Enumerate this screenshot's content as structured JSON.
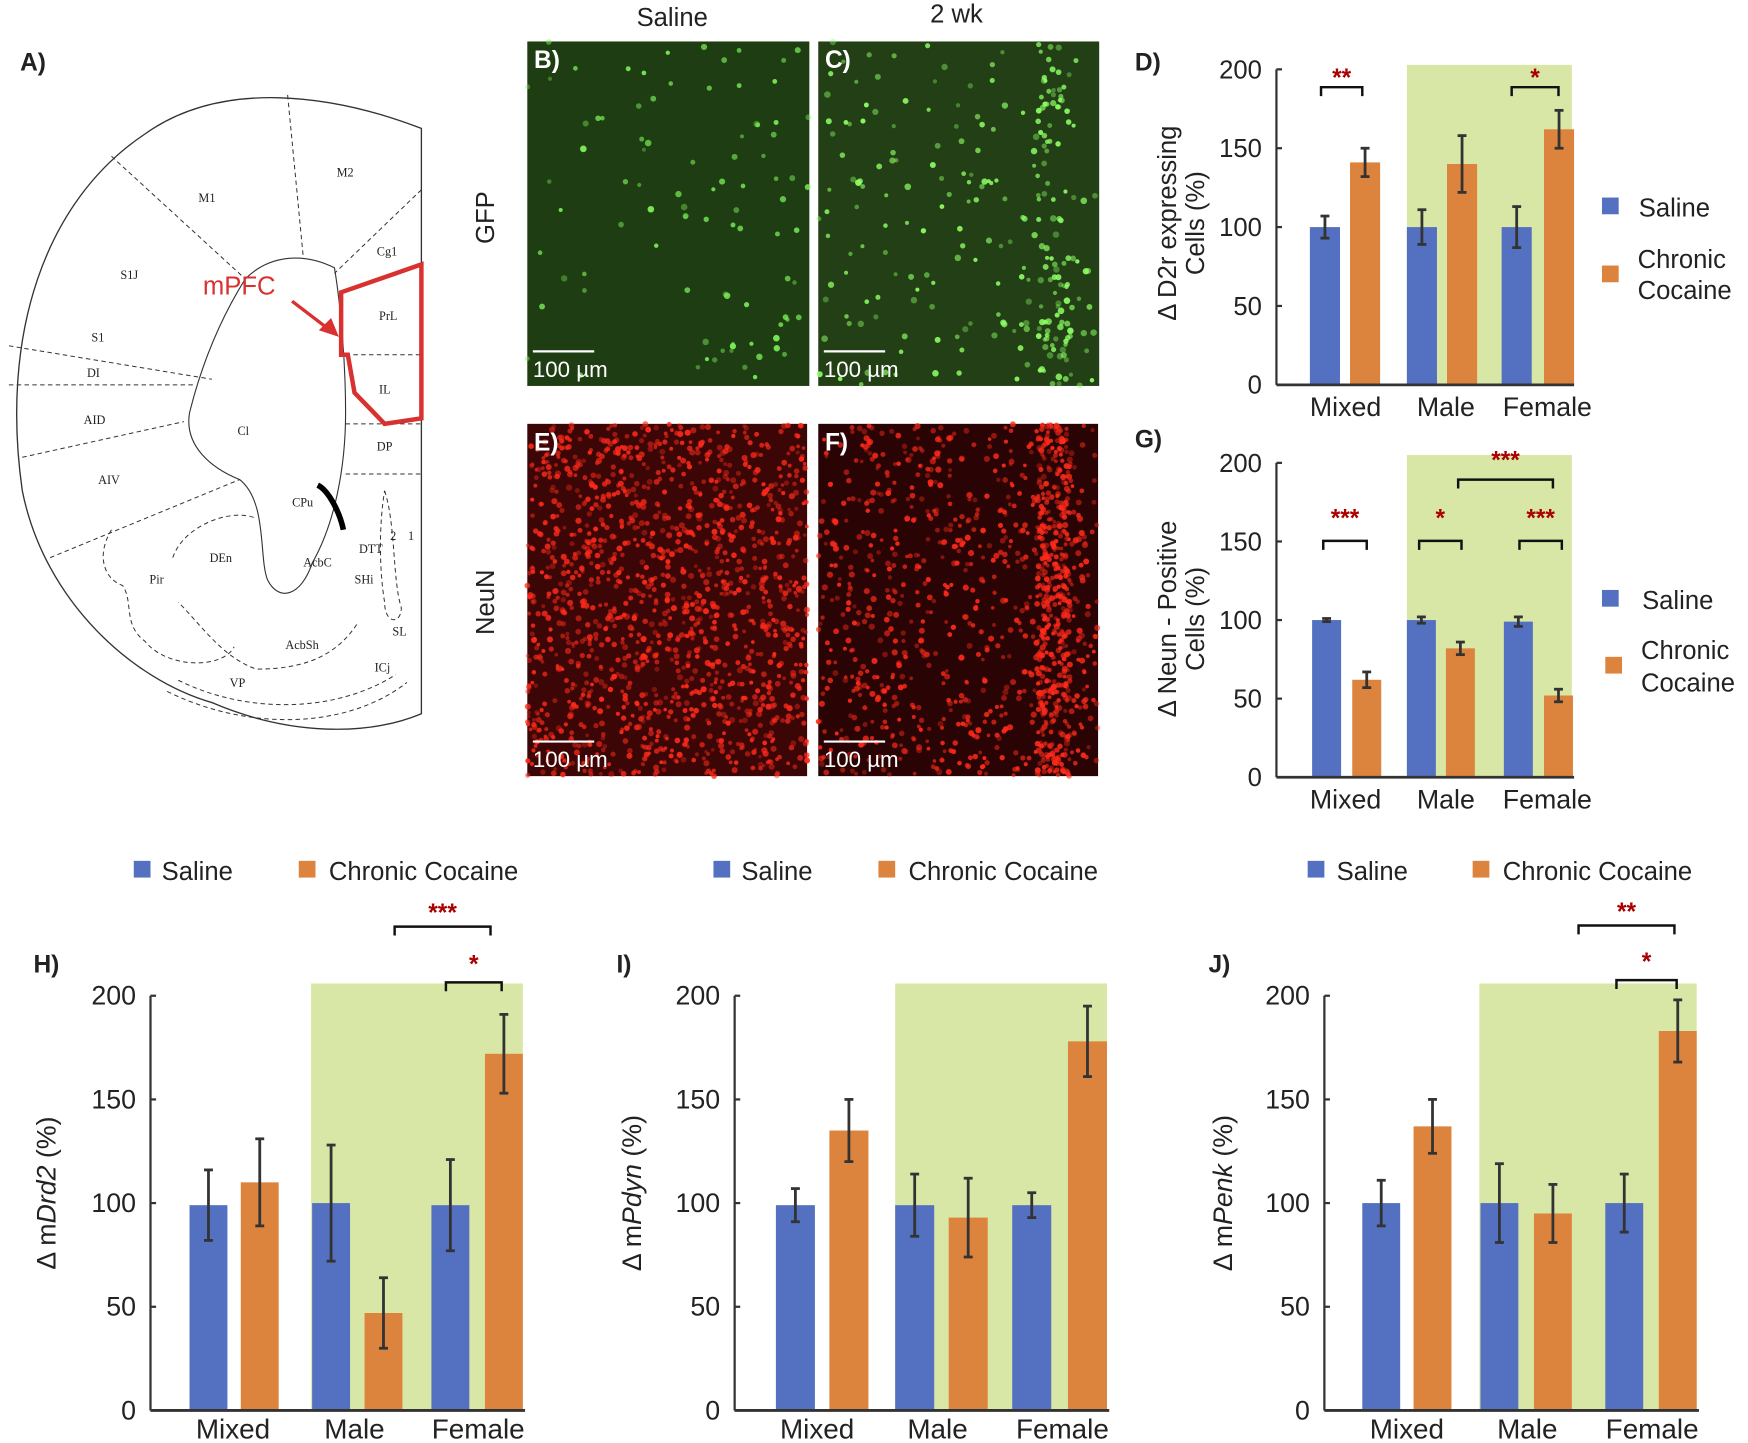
{
  "panel_labels": {
    "A": "A)",
    "B": "B)",
    "C": "C)",
    "D": "D)",
    "E": "E)",
    "F": "F)",
    "G": "G)",
    "H": "H)",
    "I": "I)",
    "J": "J)"
  },
  "column_headers": {
    "saline": "Saline",
    "two_week": "2 wk"
  },
  "row_labels": {
    "gfp": "GFP",
    "neun": "NeuN"
  },
  "scale_bar": "100 µm",
  "atlas": {
    "highlight": "mPFC",
    "regions": [
      "M1",
      "M2",
      "S1J",
      "S1",
      "DI",
      "AID",
      "AIV",
      "Cl",
      "Cg1",
      "PrL",
      "IL",
      "DP",
      "CPu",
      "DEn",
      "Pir",
      "AcbC",
      "AcbSh",
      "VP",
      "DTT",
      "SHi",
      "SL",
      "ICj",
      "1",
      "2"
    ]
  },
  "colors": {
    "saline": "#5470c0",
    "cocaine": "#dc843d",
    "shade": "#d9e7a6",
    "sig": "#aa0000",
    "green_img": "#1c3a12",
    "red_img": "#3a0606",
    "atlas_red": "#d93030"
  },
  "legend": {
    "saline": "Saline",
    "cocaine": "Chronic Cocaine",
    "cocaine_l1": "Chronic",
    "cocaine_l2": "Cocaine"
  },
  "chart_data": [
    {
      "id": "D",
      "type": "bar",
      "ylabel_l1": "Δ D2r expressing",
      "ylabel_l2": "Cells (%)",
      "ylim": [
        0,
        200
      ],
      "ticks": [
        "0",
        "50",
        "100",
        "150",
        "200"
      ],
      "categories": [
        "Mixed",
        "Male",
        "Female"
      ],
      "series": [
        {
          "name": "Saline",
          "values": [
            100,
            100,
            100
          ],
          "errors": [
            7,
            11,
            13
          ]
        },
        {
          "name": "Chronic Cocaine",
          "values": [
            141,
            140,
            162
          ],
          "errors": [
            9,
            18,
            12
          ]
        }
      ],
      "significance": [
        "**",
        "*"
      ]
    },
    {
      "id": "G",
      "type": "bar",
      "ylabel_l1": "Δ Neun - Positive",
      "ylabel_l2": "Cells (%)",
      "ylim": [
        0,
        200
      ],
      "ticks": [
        "0",
        "50",
        "100",
        "150",
        "200"
      ],
      "categories": [
        "Mixed",
        "Male",
        "Female"
      ],
      "series": [
        {
          "name": "Saline",
          "values": [
            100,
            100,
            99
          ],
          "errors": [
            1,
            2,
            3
          ]
        },
        {
          "name": "Chronic Cocaine",
          "values": [
            62,
            82,
            52
          ],
          "errors": [
            5,
            4,
            4
          ]
        }
      ],
      "significance": [
        "***",
        "*",
        "***",
        "***"
      ]
    },
    {
      "id": "H",
      "type": "bar",
      "ylabel_prefix": "Δ m",
      "ylabel_gene": "Drd2",
      "ylabel_suffix": " (%)",
      "ylim": [
        0,
        200
      ],
      "ticks": [
        "0",
        "50",
        "100",
        "150",
        "200"
      ],
      "categories": [
        "Mixed",
        "Male",
        "Female"
      ],
      "series": [
        {
          "name": "Saline",
          "values": [
            99,
            100,
            99
          ],
          "errors": [
            17,
            28,
            22
          ]
        },
        {
          "name": "Chronic Cocaine",
          "values": [
            110,
            47,
            172
          ],
          "errors": [
            21,
            17,
            19
          ]
        }
      ],
      "significance": [
        "***",
        "*"
      ]
    },
    {
      "id": "I",
      "type": "bar",
      "ylabel_prefix": "Δ m",
      "ylabel_gene": "Pdyn",
      "ylabel_suffix": " (%)",
      "ylim": [
        0,
        200
      ],
      "ticks": [
        "0",
        "50",
        "100",
        "150",
        "200"
      ],
      "categories": [
        "Mixed",
        "Male",
        "Female"
      ],
      "series": [
        {
          "name": "Saline",
          "values": [
            99,
            99,
            99
          ],
          "errors": [
            8,
            15,
            6
          ]
        },
        {
          "name": "Chronic Cocaine",
          "values": [
            135,
            93,
            178
          ],
          "errors": [
            15,
            19,
            17
          ]
        }
      ],
      "significance": []
    },
    {
      "id": "J",
      "type": "bar",
      "ylabel_prefix": "Δ m",
      "ylabel_gene": "Penk",
      "ylabel_suffix": " (%)",
      "ylim": [
        0,
        200
      ],
      "ticks": [
        "0",
        "50",
        "100",
        "150",
        "200"
      ],
      "categories": [
        "Mixed",
        "Male",
        "Female"
      ],
      "series": [
        {
          "name": "Saline",
          "values": [
            100,
            100,
            100
          ],
          "errors": [
            11,
            19,
            14
          ]
        },
        {
          "name": "Chronic Cocaine",
          "values": [
            137,
            95,
            183
          ],
          "errors": [
            13,
            14,
            15
          ]
        }
      ],
      "significance": [
        "**",
        "*"
      ]
    }
  ]
}
